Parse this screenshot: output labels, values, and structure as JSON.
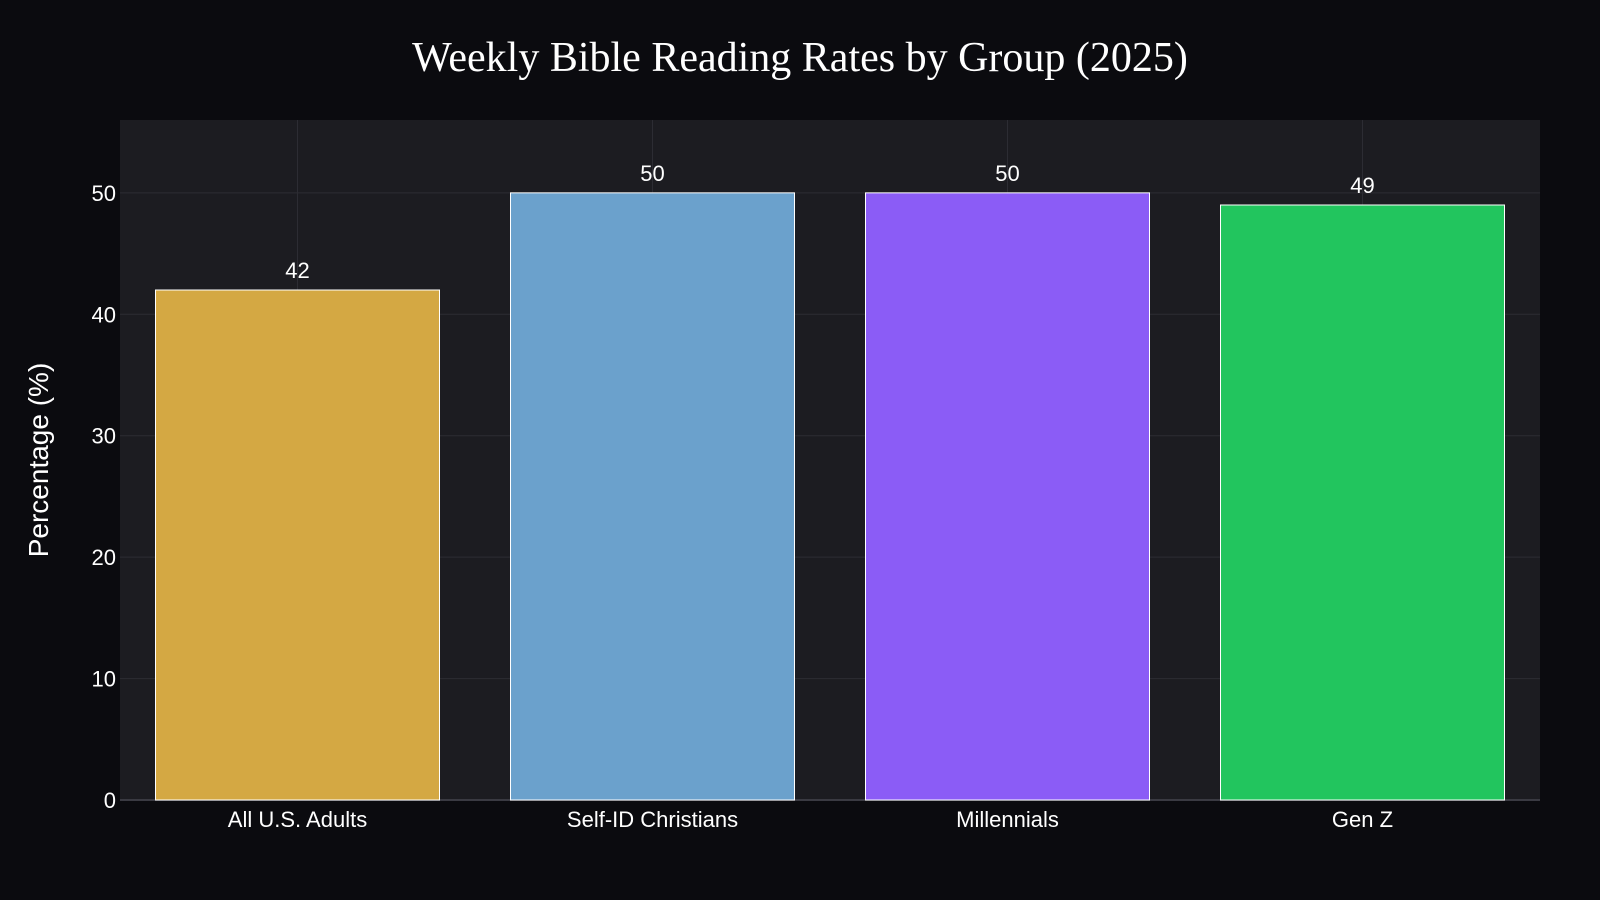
{
  "chart_data": {
    "type": "bar",
    "title": "Weekly Bible Reading Rates by Group (2025)",
    "xlabel": "",
    "ylabel": "Percentage (%)",
    "categories": [
      "All U.S. Adults",
      "Self-ID Christians",
      "Millennials",
      "Gen Z"
    ],
    "values": [
      42,
      50,
      50,
      49
    ],
    "colors": [
      "#d4a843",
      "#6ba1cc",
      "#8b5cf6",
      "#22c55e"
    ],
    "ylim": [
      0,
      56
    ],
    "yticks": [
      0,
      10,
      20,
      30,
      40,
      50
    ],
    "grid": true,
    "legend": "none",
    "plot_background": "#1c1c21",
    "page_background": "#0b0b0f"
  }
}
